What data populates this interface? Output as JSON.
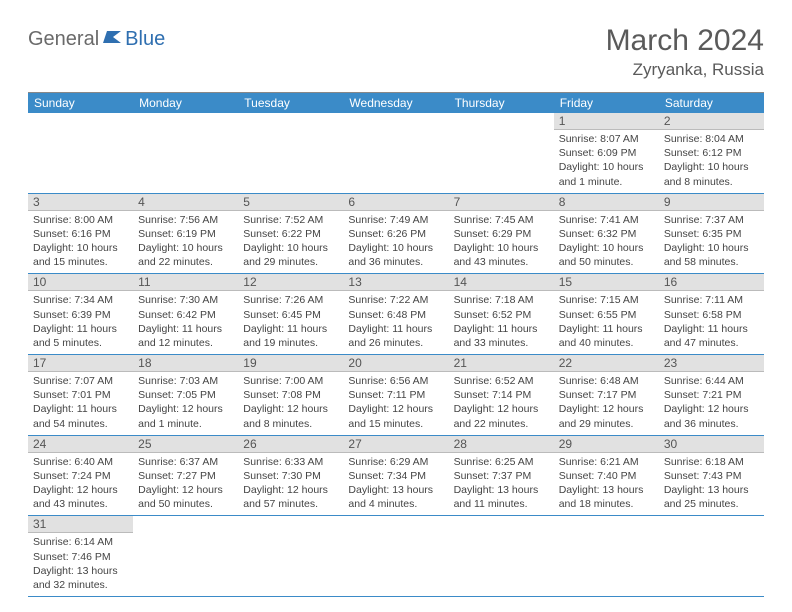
{
  "logo": {
    "text1": "General",
    "text2": "Blue"
  },
  "title": "March 2024",
  "location": "Zyryanka, Russia",
  "weekdays": [
    "Sunday",
    "Monday",
    "Tuesday",
    "Wednesday",
    "Thursday",
    "Friday",
    "Saturday"
  ],
  "colors": {
    "header_bg": "#3b8bc8",
    "header_text": "#ffffff",
    "daynum_bg": "#e1e1e1",
    "row_border": "#3b8bc8",
    "text_gray": "#5a5a5a",
    "logo_gray": "#6a6a6a",
    "logo_blue": "#2f6fb0"
  },
  "first_weekday_index": 5,
  "days": [
    {
      "n": 1,
      "sunrise": "8:07 AM",
      "sunset": "6:09 PM",
      "daylight": "10 hours and 1 minute."
    },
    {
      "n": 2,
      "sunrise": "8:04 AM",
      "sunset": "6:12 PM",
      "daylight": "10 hours and 8 minutes."
    },
    {
      "n": 3,
      "sunrise": "8:00 AM",
      "sunset": "6:16 PM",
      "daylight": "10 hours and 15 minutes."
    },
    {
      "n": 4,
      "sunrise": "7:56 AM",
      "sunset": "6:19 PM",
      "daylight": "10 hours and 22 minutes."
    },
    {
      "n": 5,
      "sunrise": "7:52 AM",
      "sunset": "6:22 PM",
      "daylight": "10 hours and 29 minutes."
    },
    {
      "n": 6,
      "sunrise": "7:49 AM",
      "sunset": "6:26 PM",
      "daylight": "10 hours and 36 minutes."
    },
    {
      "n": 7,
      "sunrise": "7:45 AM",
      "sunset": "6:29 PM",
      "daylight": "10 hours and 43 minutes."
    },
    {
      "n": 8,
      "sunrise": "7:41 AM",
      "sunset": "6:32 PM",
      "daylight": "10 hours and 50 minutes."
    },
    {
      "n": 9,
      "sunrise": "7:37 AM",
      "sunset": "6:35 PM",
      "daylight": "10 hours and 58 minutes."
    },
    {
      "n": 10,
      "sunrise": "7:34 AM",
      "sunset": "6:39 PM",
      "daylight": "11 hours and 5 minutes."
    },
    {
      "n": 11,
      "sunrise": "7:30 AM",
      "sunset": "6:42 PM",
      "daylight": "11 hours and 12 minutes."
    },
    {
      "n": 12,
      "sunrise": "7:26 AM",
      "sunset": "6:45 PM",
      "daylight": "11 hours and 19 minutes."
    },
    {
      "n": 13,
      "sunrise": "7:22 AM",
      "sunset": "6:48 PM",
      "daylight": "11 hours and 26 minutes."
    },
    {
      "n": 14,
      "sunrise": "7:18 AM",
      "sunset": "6:52 PM",
      "daylight": "11 hours and 33 minutes."
    },
    {
      "n": 15,
      "sunrise": "7:15 AM",
      "sunset": "6:55 PM",
      "daylight": "11 hours and 40 minutes."
    },
    {
      "n": 16,
      "sunrise": "7:11 AM",
      "sunset": "6:58 PM",
      "daylight": "11 hours and 47 minutes."
    },
    {
      "n": 17,
      "sunrise": "7:07 AM",
      "sunset": "7:01 PM",
      "daylight": "11 hours and 54 minutes."
    },
    {
      "n": 18,
      "sunrise": "7:03 AM",
      "sunset": "7:05 PM",
      "daylight": "12 hours and 1 minute."
    },
    {
      "n": 19,
      "sunrise": "7:00 AM",
      "sunset": "7:08 PM",
      "daylight": "12 hours and 8 minutes."
    },
    {
      "n": 20,
      "sunrise": "6:56 AM",
      "sunset": "7:11 PM",
      "daylight": "12 hours and 15 minutes."
    },
    {
      "n": 21,
      "sunrise": "6:52 AM",
      "sunset": "7:14 PM",
      "daylight": "12 hours and 22 minutes."
    },
    {
      "n": 22,
      "sunrise": "6:48 AM",
      "sunset": "7:17 PM",
      "daylight": "12 hours and 29 minutes."
    },
    {
      "n": 23,
      "sunrise": "6:44 AM",
      "sunset": "7:21 PM",
      "daylight": "12 hours and 36 minutes."
    },
    {
      "n": 24,
      "sunrise": "6:40 AM",
      "sunset": "7:24 PM",
      "daylight": "12 hours and 43 minutes."
    },
    {
      "n": 25,
      "sunrise": "6:37 AM",
      "sunset": "7:27 PM",
      "daylight": "12 hours and 50 minutes."
    },
    {
      "n": 26,
      "sunrise": "6:33 AM",
      "sunset": "7:30 PM",
      "daylight": "12 hours and 57 minutes."
    },
    {
      "n": 27,
      "sunrise": "6:29 AM",
      "sunset": "7:34 PM",
      "daylight": "13 hours and 4 minutes."
    },
    {
      "n": 28,
      "sunrise": "6:25 AM",
      "sunset": "7:37 PM",
      "daylight": "13 hours and 11 minutes."
    },
    {
      "n": 29,
      "sunrise": "6:21 AM",
      "sunset": "7:40 PM",
      "daylight": "13 hours and 18 minutes."
    },
    {
      "n": 30,
      "sunrise": "6:18 AM",
      "sunset": "7:43 PM",
      "daylight": "13 hours and 25 minutes."
    },
    {
      "n": 31,
      "sunrise": "6:14 AM",
      "sunset": "7:46 PM",
      "daylight": "13 hours and 32 minutes."
    }
  ],
  "labels": {
    "sunrise": "Sunrise:",
    "sunset": "Sunset:",
    "daylight": "Daylight:"
  }
}
